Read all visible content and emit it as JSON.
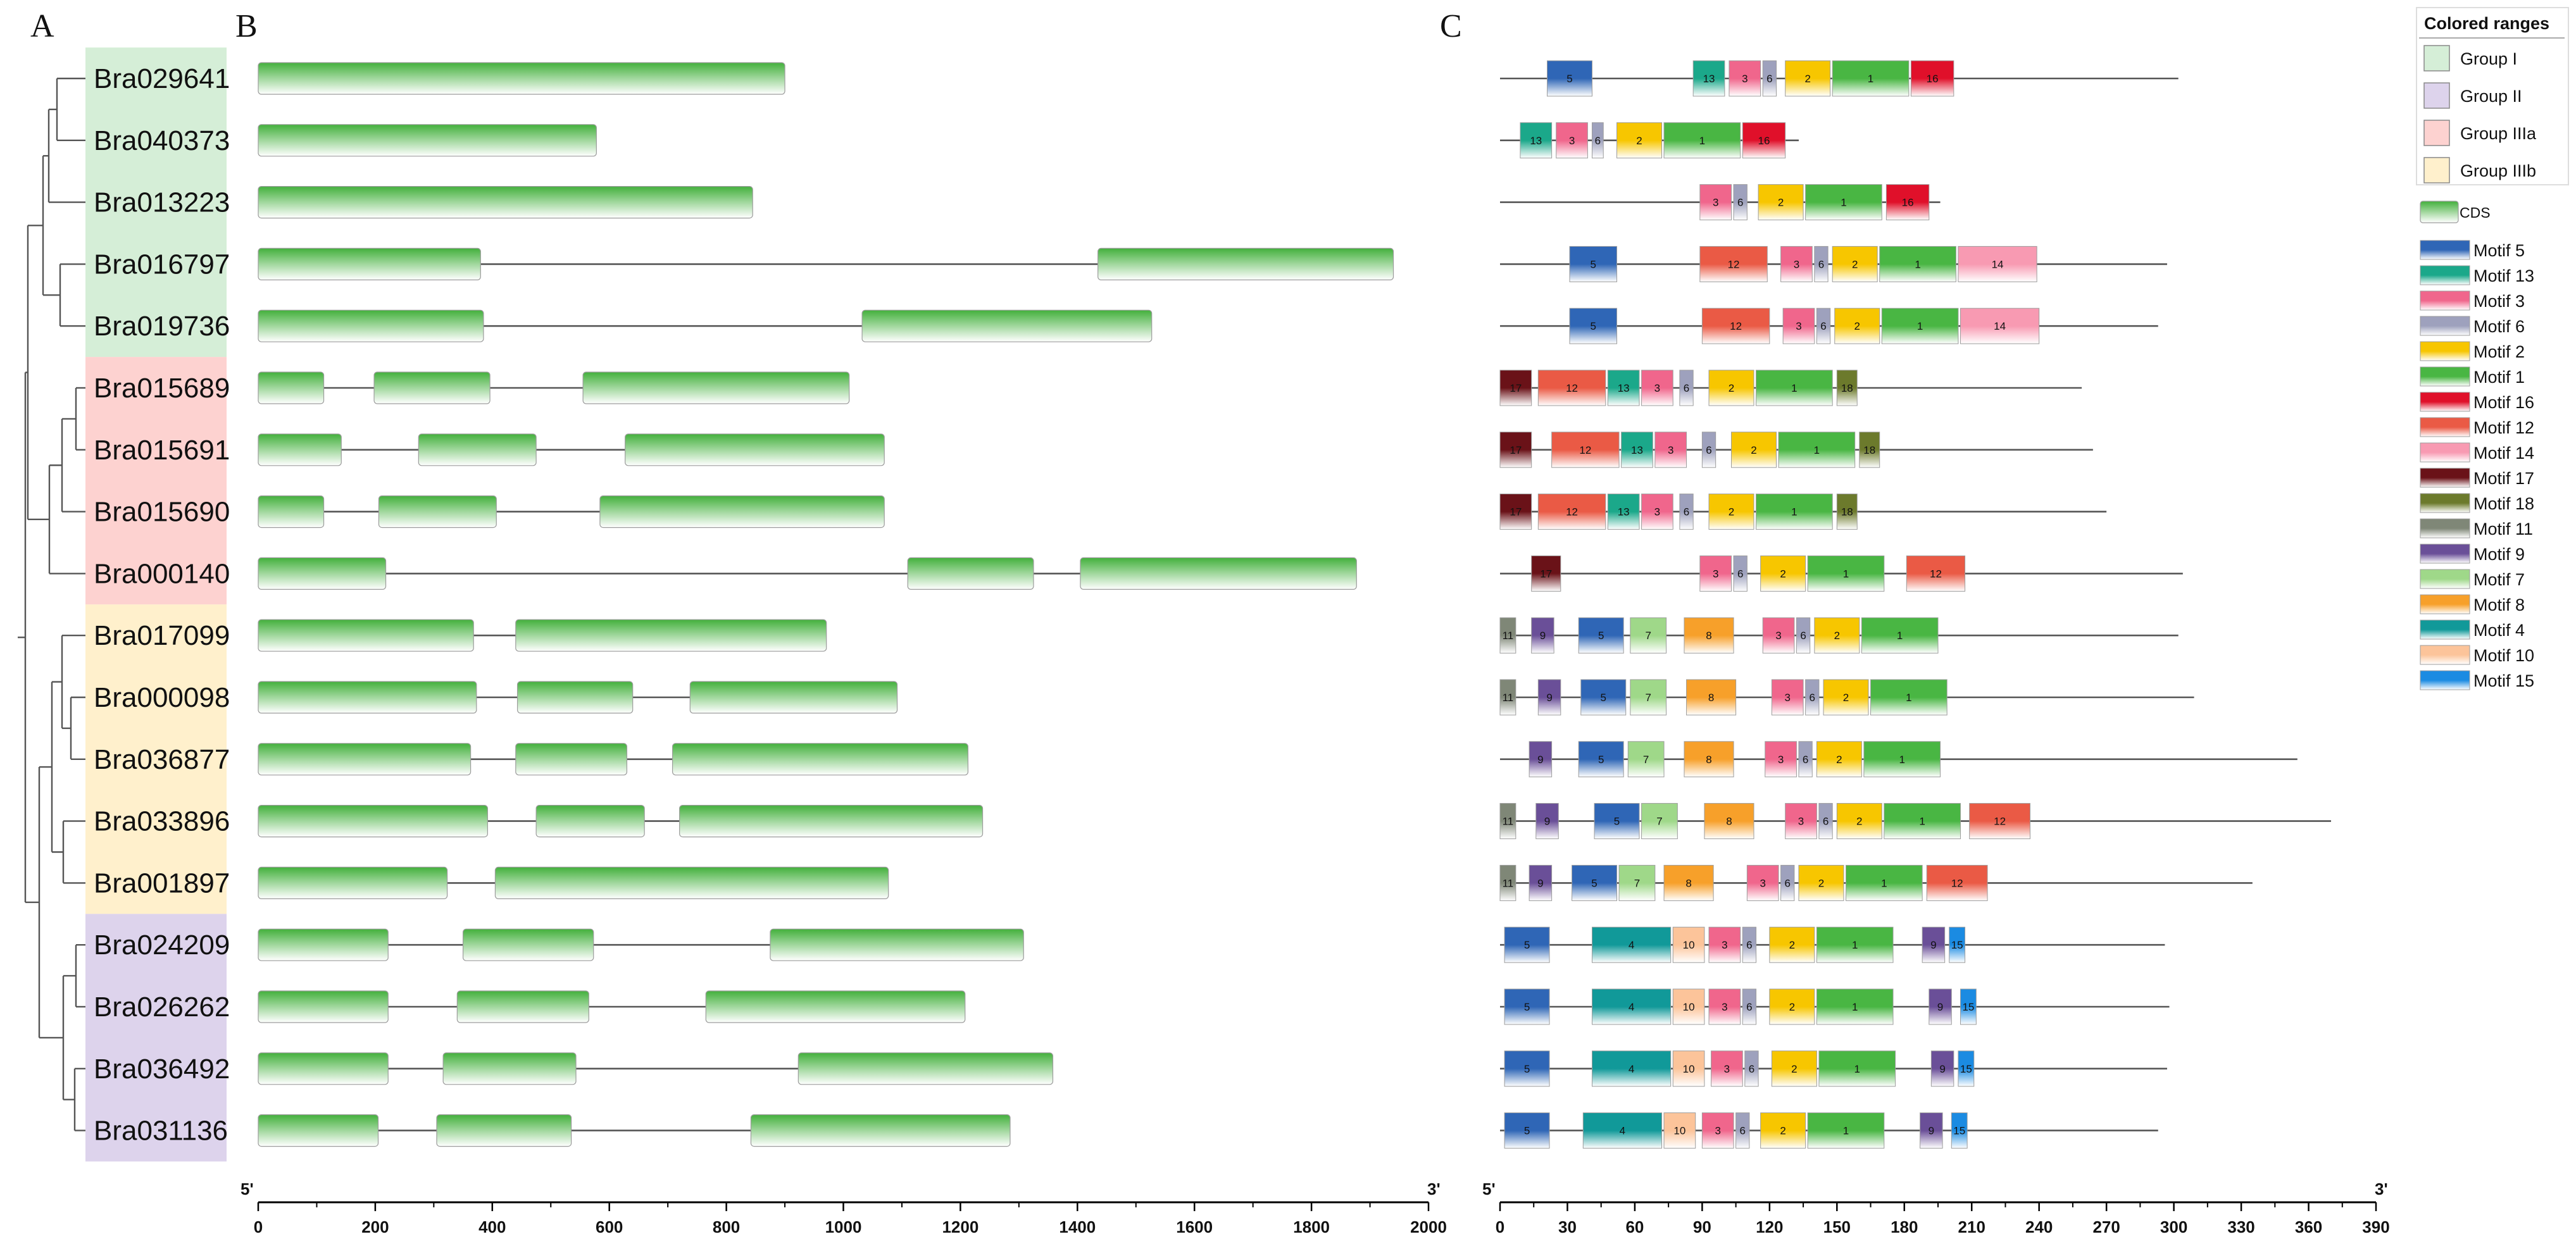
{
  "panels": {
    "a": "A",
    "b": "B",
    "c": "C"
  },
  "group_colors": {
    "Group I": "#d5eed7",
    "Group II": "#ddd3ec",
    "Group IIIa": "#fdd2d0",
    "Group IIIb": "#fff0cc"
  },
  "genes": [
    {
      "name": "Bra029641",
      "group": "Group I",
      "exons": [
        [
          0,
          900
        ]
      ],
      "protein_len": 302,
      "motifs": [
        [
          21,
          41,
          "5"
        ],
        [
          86,
          100,
          "13"
        ],
        [
          102,
          116,
          "3"
        ],
        [
          117,
          123,
          "6"
        ],
        [
          127,
          147,
          "2"
        ],
        [
          148,
          182,
          "1"
        ],
        [
          183,
          202,
          "16"
        ]
      ]
    },
    {
      "name": "Bra040373",
      "group": "Group I",
      "exons": [
        [
          0,
          578
        ]
      ],
      "protein_len": 133,
      "motifs": [
        [
          9,
          23,
          "13"
        ],
        [
          25,
          39,
          "3"
        ],
        [
          41,
          46,
          "6"
        ],
        [
          52,
          72,
          "2"
        ],
        [
          73,
          107,
          "1"
        ],
        [
          108,
          127,
          "16"
        ]
      ]
    },
    {
      "name": "Bra013223",
      "group": "Group I",
      "exons": [
        [
          0,
          845
        ]
      ],
      "protein_len": 196,
      "motifs": [
        [
          89,
          103,
          "3"
        ],
        [
          104,
          110,
          "6"
        ],
        [
          115,
          135,
          "2"
        ],
        [
          136,
          170,
          "1"
        ],
        [
          172,
          191,
          "16"
        ]
      ]
    },
    {
      "name": "Bra016797",
      "group": "Group I",
      "exons": [
        [
          0,
          380
        ],
        [
          1435,
          1940
        ]
      ],
      "protein_len": 297,
      "motifs": [
        [
          31,
          52,
          "5"
        ],
        [
          89,
          119,
          "12"
        ],
        [
          125,
          139,
          "3"
        ],
        [
          140,
          146,
          "6"
        ],
        [
          148,
          168,
          "2"
        ],
        [
          169,
          203,
          "1"
        ],
        [
          204,
          239,
          "14"
        ]
      ]
    },
    {
      "name": "Bra019736",
      "group": "Group I",
      "exons": [
        [
          0,
          385
        ],
        [
          1032,
          1527
        ]
      ],
      "protein_len": 293,
      "motifs": [
        [
          31,
          52,
          "5"
        ],
        [
          90,
          120,
          "12"
        ],
        [
          126,
          140,
          "3"
        ],
        [
          141,
          147,
          "6"
        ],
        [
          149,
          169,
          "2"
        ],
        [
          170,
          204,
          "1"
        ],
        [
          205,
          240,
          "14"
        ]
      ]
    },
    {
      "name": "Bra015689",
      "group": "Group IIIa",
      "exons": [
        [
          0,
          112
        ],
        [
          198,
          396
        ],
        [
          555,
          1010
        ]
      ],
      "protein_len": 259,
      "motifs": [
        [
          0,
          14,
          "17"
        ],
        [
          17,
          47,
          "12"
        ],
        [
          48,
          62,
          "13"
        ],
        [
          63,
          77,
          "3"
        ],
        [
          80,
          86,
          "6"
        ],
        [
          93,
          113,
          "2"
        ],
        [
          114,
          148,
          "1"
        ],
        [
          150,
          159,
          "18"
        ]
      ]
    },
    {
      "name": "Bra015691",
      "group": "Group IIIa",
      "exons": [
        [
          0,
          142
        ],
        [
          274,
          475
        ],
        [
          627,
          1070
        ]
      ],
      "protein_len": 264,
      "motifs": [
        [
          0,
          14,
          "17"
        ],
        [
          23,
          53,
          "12"
        ],
        [
          54,
          68,
          "13"
        ],
        [
          69,
          83,
          "3"
        ],
        [
          90,
          96,
          "6"
        ],
        [
          103,
          123,
          "2"
        ],
        [
          124,
          158,
          "1"
        ],
        [
          160,
          169,
          "18"
        ]
      ]
    },
    {
      "name": "Bra015690",
      "group": "Group IIIa",
      "exons": [
        [
          0,
          112
        ],
        [
          206,
          407
        ],
        [
          584,
          1070
        ]
      ],
      "protein_len": 270,
      "motifs": [
        [
          0,
          14,
          "17"
        ],
        [
          17,
          47,
          "12"
        ],
        [
          48,
          62,
          "13"
        ],
        [
          63,
          77,
          "3"
        ],
        [
          80,
          86,
          "6"
        ],
        [
          93,
          113,
          "2"
        ],
        [
          114,
          148,
          "1"
        ],
        [
          150,
          159,
          "18"
        ]
      ]
    },
    {
      "name": "Bra000140",
      "group": "Group IIIa",
      "exons": [
        [
          0,
          218
        ],
        [
          1110,
          1325
        ],
        [
          1405,
          1877
        ]
      ],
      "protein_len": 304,
      "motifs": [
        [
          14,
          27,
          "17"
        ],
        [
          89,
          103,
          "3"
        ],
        [
          104,
          110,
          "6"
        ],
        [
          116,
          136,
          "2"
        ],
        [
          137,
          171,
          "1"
        ],
        [
          181,
          207,
          "12"
        ]
      ]
    },
    {
      "name": "Bra017099",
      "group": "Group IIIb",
      "exons": [
        [
          0,
          368
        ],
        [
          440,
          971
        ]
      ],
      "protein_len": 302,
      "motifs": [
        [
          0,
          7,
          "11"
        ],
        [
          14,
          24,
          "9"
        ],
        [
          35,
          55,
          "5"
        ],
        [
          58,
          74,
          "7"
        ],
        [
          82,
          104,
          "8"
        ],
        [
          117,
          131,
          "3"
        ],
        [
          132,
          138,
          "6"
        ],
        [
          140,
          160,
          "2"
        ],
        [
          161,
          195,
          "1"
        ]
      ]
    },
    {
      "name": "Bra000098",
      "group": "Group IIIb",
      "exons": [
        [
          0,
          373
        ],
        [
          443,
          640
        ],
        [
          738,
          1092
        ]
      ],
      "protein_len": 309,
      "motifs": [
        [
          0,
          7,
          "11"
        ],
        [
          17,
          27,
          "9"
        ],
        [
          36,
          56,
          "5"
        ],
        [
          58,
          74,
          "7"
        ],
        [
          83,
          105,
          "8"
        ],
        [
          121,
          135,
          "3"
        ],
        [
          136,
          142,
          "6"
        ],
        [
          144,
          164,
          "2"
        ],
        [
          165,
          199,
          "1"
        ]
      ]
    },
    {
      "name": "Bra036877",
      "group": "Group IIIb",
      "exons": [
        [
          0,
          363
        ],
        [
          440,
          630
        ],
        [
          708,
          1213
        ]
      ],
      "protein_len": 355,
      "motifs": [
        [
          13,
          23,
          "9"
        ],
        [
          35,
          55,
          "5"
        ],
        [
          57,
          73,
          "7"
        ],
        [
          82,
          104,
          "8"
        ],
        [
          118,
          132,
          "3"
        ],
        [
          133,
          139,
          "6"
        ],
        [
          141,
          161,
          "2"
        ],
        [
          162,
          196,
          "1"
        ]
      ]
    },
    {
      "name": "Bra033896",
      "group": "Group IIIb",
      "exons": [
        [
          0,
          392
        ],
        [
          475,
          660
        ],
        [
          720,
          1238
        ]
      ],
      "protein_len": 370,
      "motifs": [
        [
          0,
          7,
          "11"
        ],
        [
          16,
          26,
          "9"
        ],
        [
          42,
          62,
          "5"
        ],
        [
          63,
          79,
          "7"
        ],
        [
          91,
          113,
          "8"
        ],
        [
          127,
          141,
          "3"
        ],
        [
          142,
          148,
          "6"
        ],
        [
          150,
          170,
          "2"
        ],
        [
          171,
          205,
          "1"
        ],
        [
          209,
          236,
          "12"
        ]
      ]
    },
    {
      "name": "Bra001897",
      "group": "Group IIIb",
      "exons": [
        [
          0,
          323
        ],
        [
          405,
          1077
        ]
      ],
      "protein_len": 335,
      "motifs": [
        [
          0,
          7,
          "11"
        ],
        [
          13,
          23,
          "9"
        ],
        [
          32,
          52,
          "5"
        ],
        [
          53,
          69,
          "7"
        ],
        [
          73,
          95,
          "8"
        ],
        [
          110,
          124,
          "3"
        ],
        [
          125,
          131,
          "6"
        ],
        [
          133,
          153,
          "2"
        ],
        [
          154,
          188,
          "1"
        ],
        [
          190,
          217,
          "12"
        ]
      ]
    },
    {
      "name": "Bra024209",
      "group": "Group II",
      "exons": [
        [
          0,
          222
        ],
        [
          350,
          573
        ],
        [
          875,
          1308
        ]
      ],
      "protein_len": 296,
      "motifs": [
        [
          2,
          22,
          "5"
        ],
        [
          41,
          76,
          "4"
        ],
        [
          77,
          91,
          "10"
        ],
        [
          93,
          107,
          "3"
        ],
        [
          108,
          114,
          "6"
        ],
        [
          120,
          140,
          "2"
        ],
        [
          141,
          175,
          "1"
        ],
        [
          188,
          198,
          "9"
        ],
        [
          200,
          207,
          "15"
        ]
      ]
    },
    {
      "name": "Bra026262",
      "group": "Group II",
      "exons": [
        [
          0,
          222
        ],
        [
          340,
          565
        ],
        [
          765,
          1208
        ]
      ],
      "protein_len": 298,
      "motifs": [
        [
          2,
          22,
          "5"
        ],
        [
          41,
          76,
          "4"
        ],
        [
          77,
          91,
          "10"
        ],
        [
          93,
          107,
          "3"
        ],
        [
          108,
          114,
          "6"
        ],
        [
          120,
          140,
          "2"
        ],
        [
          141,
          175,
          "1"
        ],
        [
          191,
          201,
          "9"
        ],
        [
          205,
          212,
          "15"
        ]
      ]
    },
    {
      "name": "Bra036492",
      "group": "Group II",
      "exons": [
        [
          0,
          222
        ],
        [
          316,
          543
        ],
        [
          923,
          1358
        ]
      ],
      "protein_len": 297,
      "motifs": [
        [
          2,
          22,
          "5"
        ],
        [
          41,
          76,
          "4"
        ],
        [
          77,
          91,
          "10"
        ],
        [
          94,
          108,
          "3"
        ],
        [
          109,
          115,
          "6"
        ],
        [
          121,
          141,
          "2"
        ],
        [
          142,
          176,
          "1"
        ],
        [
          192,
          202,
          "9"
        ],
        [
          204,
          211,
          "15"
        ]
      ]
    },
    {
      "name": "Bra031136",
      "group": "Group II",
      "exons": [
        [
          0,
          205
        ],
        [
          305,
          535
        ],
        [
          842,
          1285
        ]
      ],
      "protein_len": 293,
      "motifs": [
        [
          2,
          22,
          "5"
        ],
        [
          37,
          72,
          "4"
        ],
        [
          73,
          87,
          "10"
        ],
        [
          90,
          104,
          "3"
        ],
        [
          105,
          111,
          "6"
        ],
        [
          116,
          136,
          "2"
        ],
        [
          137,
          171,
          "1"
        ],
        [
          187,
          197,
          "9"
        ],
        [
          201,
          208,
          "15"
        ]
      ]
    }
  ],
  "motif_colors": {
    "5": "#2f66b6",
    "13": "#1ba88a",
    "3": "#f0668c",
    "6": "#9ea1bd",
    "2": "#f7c600",
    "1": "#49b643",
    "16": "#e0102a",
    "12": "#ea5a45",
    "14": "#f89ab2",
    "17": "#6a1218",
    "18": "#6c7a2c",
    "11": "#7f8777",
    "9": "#6a4f98",
    "7": "#9fd889",
    "8": "#f7a02a",
    "4": "#119999",
    "10": "#fcc49a",
    "15": "#1b8be2"
  },
  "legend": {
    "title": "Colored ranges",
    "groups": [
      "Group I",
      "Group II",
      "Group IIIa",
      "Group IIIb"
    ],
    "cds_label": "CDS",
    "motif_prefix": "Motif",
    "motifs": [
      "5",
      "13",
      "3",
      "6",
      "2",
      "1",
      "16",
      "12",
      "14",
      "17",
      "18",
      "11",
      "9",
      "7",
      "8",
      "4",
      "10",
      "15"
    ]
  },
  "gene_axis": {
    "min": 0,
    "max": 2000,
    "step": 200,
    "tick_labels": [
      "0",
      "200",
      "400",
      "600",
      "800",
      "1000",
      "1200",
      "1400",
      "1600",
      "1800",
      "2000"
    ],
    "start_label": "5'",
    "end_label": "3'"
  },
  "protein_axis": {
    "min": 0,
    "max": 390,
    "step": 30,
    "tick_labels": [
      "0",
      "30",
      "60",
      "90",
      "120",
      "150",
      "180",
      "210",
      "240",
      "270",
      "300",
      "330",
      "360",
      "390"
    ],
    "start_label": "5'",
    "end_label": "3'"
  }
}
